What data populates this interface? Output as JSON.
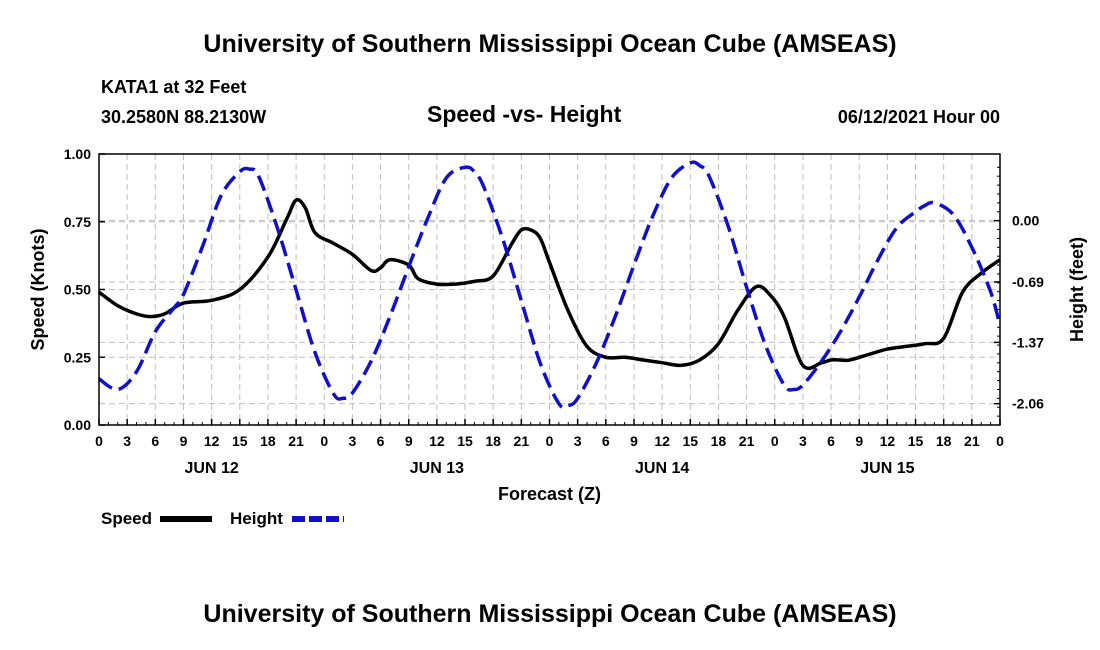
{
  "header": {
    "top_title": "University of Southern Mississippi Ocean Cube (AMSEAS)",
    "station": "KATA1 at 32 Feet",
    "coords": "30.2580N  88.2130W",
    "subtitle": "Speed -vs- Height",
    "date": "06/12/2021 Hour 00",
    "bottom_title": "University of Southern Mississippi Ocean Cube (AMSEAS)"
  },
  "colors": {
    "speed": "#000000",
    "height": "#1010c8",
    "grid": "#bfbfbf"
  },
  "chart_data": {
    "type": "line",
    "title": "Speed -vs- Height",
    "xlabel": "Forecast (Z)",
    "ylabel_left": "Speed (Knots)",
    "ylabel_right": "Height (feet)",
    "xlim": [
      0,
      96
    ],
    "ylim_left": [
      0,
      1.0
    ],
    "ylim_right": [
      -2.3,
      0.75
    ],
    "left_ticks": [
      {
        "v": 0.0,
        "label": "0.00"
      },
      {
        "v": 0.25,
        "label": "0.25"
      },
      {
        "v": 0.5,
        "label": "0.50"
      },
      {
        "v": 0.75,
        "label": "0.75"
      },
      {
        "v": 1.0,
        "label": "1.00"
      }
    ],
    "right_ticks": [
      {
        "v": 0.0,
        "label": "0.00"
      },
      {
        "v": -0.69,
        "label": "-0.69"
      },
      {
        "v": -1.37,
        "label": "-1.37"
      },
      {
        "v": -2.06,
        "label": "-2.06"
      }
    ],
    "x_tick_labels": [
      "0",
      "3",
      "6",
      "9",
      "12",
      "15",
      "18",
      "21",
      "0",
      "3",
      "6",
      "9",
      "12",
      "15",
      "18",
      "21",
      "0",
      "3",
      "6",
      "9",
      "12",
      "15",
      "18",
      "21",
      "0",
      "3",
      "6",
      "9",
      "12",
      "15",
      "18",
      "21",
      "0"
    ],
    "day_labels": [
      {
        "hour": 12,
        "label": "JUN 12"
      },
      {
        "hour": 36,
        "label": "JUN 13"
      },
      {
        "hour": 60,
        "label": "JUN 14"
      },
      {
        "hour": 84,
        "label": "JUN 15"
      }
    ],
    "grid": true,
    "series": [
      {
        "name": "Speed",
        "axis": "left",
        "style": "solid",
        "x": [
          0,
          2,
          4,
          5.5,
          7,
          9,
          12,
          15,
          18,
          20,
          21,
          22,
          23,
          25,
          27,
          29,
          30,
          31,
          33,
          34,
          36,
          38,
          40,
          42,
          44,
          45,
          46,
          47,
          48,
          50,
          52,
          54,
          56,
          58,
          60,
          62,
          64,
          66,
          68,
          70,
          71.5,
          73,
          75,
          77,
          78,
          79,
          80,
          82,
          84,
          86,
          88,
          90,
          92,
          94,
          96
        ],
        "y": [
          0.49,
          0.44,
          0.41,
          0.4,
          0.41,
          0.45,
          0.46,
          0.5,
          0.62,
          0.76,
          0.83,
          0.8,
          0.71,
          0.67,
          0.63,
          0.57,
          0.58,
          0.61,
          0.59,
          0.54,
          0.52,
          0.52,
          0.53,
          0.55,
          0.67,
          0.72,
          0.72,
          0.69,
          0.6,
          0.42,
          0.29,
          0.25,
          0.25,
          0.24,
          0.23,
          0.22,
          0.24,
          0.3,
          0.42,
          0.51,
          0.48,
          0.4,
          0.22,
          0.23,
          0.24,
          0.24,
          0.24,
          0.26,
          0.28,
          0.29,
          0.3,
          0.32,
          0.49,
          0.56,
          0.61
        ]
      },
      {
        "name": "Height",
        "axis": "right",
        "style": "dashed",
        "x": [
          0,
          2,
          4,
          6,
          8,
          9,
          11,
          13,
          15,
          16,
          17,
          19,
          21,
          23,
          25,
          26,
          27,
          29,
          31,
          33,
          35,
          37,
          39,
          40,
          41,
          43,
          45,
          47,
          49,
          50,
          51,
          53,
          55,
          57,
          59,
          61,
          63,
          64,
          65,
          67,
          69,
          71,
          73,
          74,
          75,
          77,
          79,
          81,
          83,
          85,
          87,
          88,
          89,
          91,
          93,
          95,
          96
        ],
        "y": [
          -1.78,
          -1.9,
          -1.7,
          -1.25,
          -0.98,
          -0.83,
          -0.3,
          0.28,
          0.55,
          0.58,
          0.5,
          -0.08,
          -0.78,
          -1.48,
          -1.95,
          -2.0,
          -1.94,
          -1.58,
          -1.08,
          -0.52,
          0.02,
          0.48,
          0.6,
          0.55,
          0.38,
          -0.2,
          -0.9,
          -1.6,
          -2.06,
          -2.08,
          -2.0,
          -1.6,
          -1.08,
          -0.5,
          0.05,
          0.48,
          0.65,
          0.62,
          0.5,
          -0.05,
          -0.75,
          -1.4,
          -1.85,
          -1.9,
          -1.85,
          -1.58,
          -1.25,
          -0.86,
          -0.44,
          -0.08,
          0.1,
          0.17,
          0.2,
          0.07,
          -0.3,
          -0.8,
          -1.18
        ]
      }
    ]
  },
  "legend": {
    "speed_label": "Speed",
    "height_label": "Height"
  }
}
